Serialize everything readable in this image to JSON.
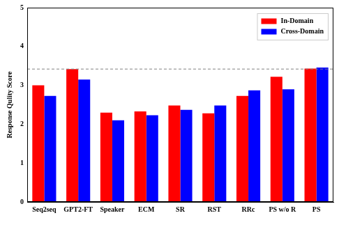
{
  "chart_data": {
    "type": "bar",
    "y_label": "Response Qulity Score",
    "categories": [
      "Seq2seq",
      "GPT2-FT",
      "Speaker",
      "ECM",
      "SR",
      "RST",
      "RRc",
      "PS w/o R",
      "PS"
    ],
    "series": [
      {
        "name": "In-Domain",
        "color": "#ff0000",
        "values": [
          3.0,
          3.42,
          2.3,
          2.33,
          2.48,
          2.28,
          2.73,
          3.22,
          3.43
        ]
      },
      {
        "name": "Cross-Domain",
        "color": "#0000ff",
        "values": [
          2.73,
          3.15,
          2.1,
          2.23,
          2.37,
          2.48,
          2.87,
          2.9,
          3.46
        ]
      }
    ],
    "hline": 3.42,
    "ylim": [
      0,
      5
    ],
    "yticks": [
      0,
      1,
      2,
      3,
      4,
      5
    ],
    "grid": false,
    "legend": "upper right"
  }
}
